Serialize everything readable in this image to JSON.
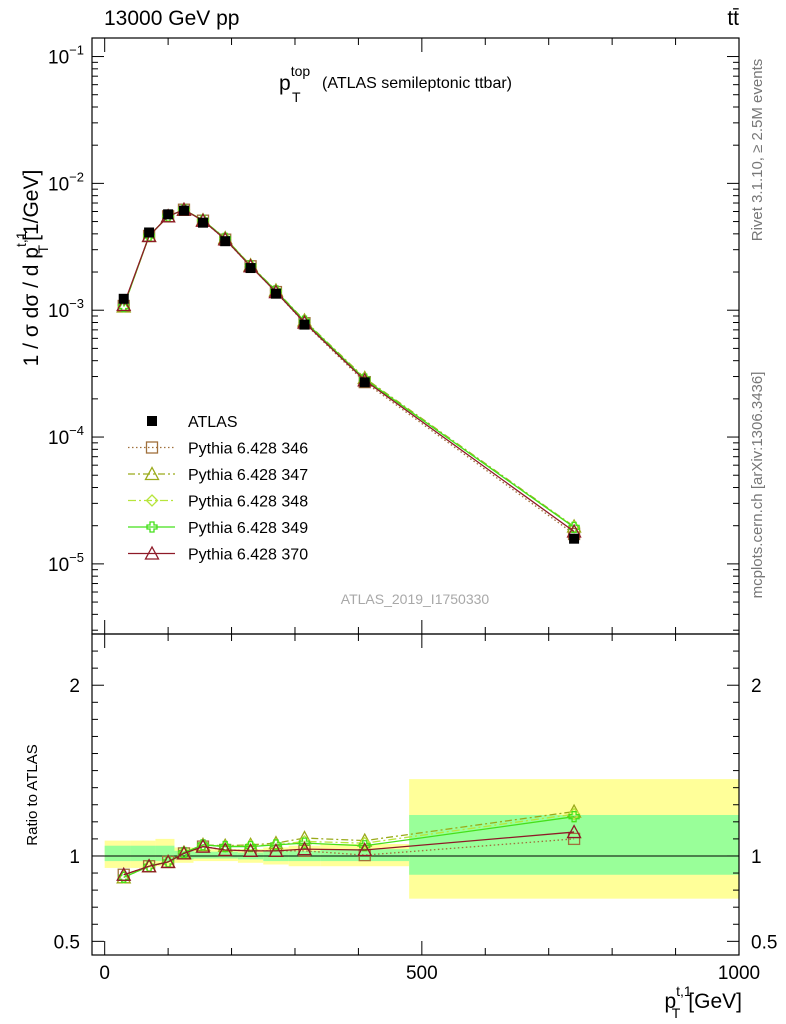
{
  "header": {
    "energy_label": "13000 GeV pp",
    "process_label": "tt̄"
  },
  "side_labels": {
    "rivet": "Rivet 3.1.10, ≥ 2.5M events",
    "mcplots": "mcplots.cern.ch [arXiv:1306.3436]"
  },
  "watermark": "ATLAS_2019_I1750330",
  "chart_data": [
    {
      "type": "line",
      "panel": "main",
      "title_main": "p",
      "title_sup": "top",
      "title_sub": "T",
      "title_rest": "(ATLAS semileptonic ttbar)",
      "ylabel": "1 / σ dσ / d p",
      "ylabel_sup": "t,1",
      "ylabel_sub": "T",
      "ylabel_unit": "[1/GeV]",
      "yscale": "log",
      "xlim": [
        -20,
        1000
      ],
      "ylim": [
        2.8e-06,
        0.14
      ],
      "ytick_labels": [
        {
          "value": 1e-05,
          "base": "10",
          "exp": "−5"
        },
        {
          "value": 0.0001,
          "base": "10",
          "exp": "−4"
        },
        {
          "value": 0.001,
          "base": "10",
          "exp": "−3"
        },
        {
          "value": 0.01,
          "base": "10",
          "exp": "−2"
        },
        {
          "value": 0.1,
          "base": "10",
          "exp": "−1"
        }
      ],
      "x": [
        30,
        70,
        100,
        125,
        155,
        190,
        230,
        270,
        315,
        410,
        740
      ],
      "data": {
        "name": "ATLAS",
        "values": [
          0.00123,
          0.0041,
          0.0057,
          0.0061,
          0.0049,
          0.0035,
          0.00215,
          0.00135,
          0.00077,
          0.00027,
          1.58e-05
        ]
      },
      "series": [
        {
          "name": "Pythia 6.428 346",
          "color": "#a0703c",
          "marker": "square",
          "dash": "1.5,2.5",
          "values": [
            0.00108,
            0.00385,
            0.0055,
            0.0062,
            0.00508,
            0.0036,
            0.00222,
            0.00139,
            0.00079,
            0.000271,
            1.72e-05
          ]
        },
        {
          "name": "Pythia 6.428 347",
          "color": "#9aaa1a",
          "marker": "triangle",
          "dash": "7,3,2,3",
          "values": [
            0.00107,
            0.00385,
            0.0055,
            0.0062,
            0.00512,
            0.0037,
            0.00226,
            0.00143,
            0.00083,
            0.000292,
            1.97e-05
          ]
        },
        {
          "name": "Pythia 6.428 348",
          "color": "#b7e53c",
          "marker": "diamond",
          "dash": "8,3,2,3",
          "values": [
            0.00107,
            0.00385,
            0.0055,
            0.0062,
            0.00512,
            0.00368,
            0.00225,
            0.00142,
            0.00082,
            0.000287,
            1.95e-05
          ]
        },
        {
          "name": "Pythia 6.428 349",
          "color": "#44e01a",
          "marker": "cross",
          "dash": "",
          "values": [
            0.00107,
            0.00385,
            0.0055,
            0.0062,
            0.00512,
            0.00368,
            0.00224,
            0.00142,
            0.00082,
            0.000286,
            1.94e-05
          ]
        },
        {
          "name": "Pythia 6.428 370",
          "color": "#8e1a28",
          "marker": "triangle",
          "dash": "",
          "values": [
            0.0011,
            0.00385,
            0.0055,
            0.0062,
            0.00508,
            0.00362,
            0.00222,
            0.00139,
            0.0008,
            0.00028,
            1.8e-05
          ]
        }
      ]
    },
    {
      "type": "line",
      "panel": "ratio",
      "ylabel": "Ratio to ATLAS",
      "xlabel": "p",
      "xlabel_sup": "t,1",
      "xlabel_sub": "T",
      "xlabel_unit": "[GeV]",
      "xlim": [
        -20,
        1000
      ],
      "ylim": [
        0.42,
        2.3
      ],
      "yticks_major": [
        0.5,
        1,
        2
      ],
      "ytick_labels": [
        "0.5",
        "1",
        "2"
      ],
      "xticks_major": [
        0,
        500,
        1000
      ],
      "xtick_labels": [
        "0",
        "500",
        "1000"
      ],
      "x": [
        30,
        70,
        100,
        125,
        155,
        190,
        230,
        270,
        315,
        410,
        740
      ],
      "bands": {
        "edges": [
          0,
          40,
          80,
          110,
          140,
          170,
          210,
          250,
          290,
          340,
          480,
          1000
        ],
        "stat_syst": [
          [
            0.93,
            1.09
          ],
          [
            0.93,
            1.09
          ],
          [
            0.94,
            1.1
          ],
          [
            0.96,
            1.05
          ],
          [
            0.97,
            1.04
          ],
          [
            0.97,
            1.04
          ],
          [
            0.96,
            1.04
          ],
          [
            0.95,
            1.05
          ],
          [
            0.94,
            1.06
          ],
          [
            0.94,
            1.07
          ],
          [
            0.75,
            1.45
          ]
        ],
        "stat": [
          [
            0.97,
            1.06
          ],
          [
            0.97,
            1.06
          ],
          [
            0.97,
            1.06
          ],
          [
            0.98,
            1.03
          ],
          [
            0.985,
            1.025
          ],
          [
            0.985,
            1.025
          ],
          [
            0.98,
            1.02
          ],
          [
            0.97,
            1.03
          ],
          [
            0.97,
            1.03
          ],
          [
            0.97,
            1.04
          ],
          [
            0.89,
            1.24
          ]
        ]
      },
      "series": [
        {
          "name": "Pythia 6.428 346",
          "values": [
            0.89,
            0.94,
            0.965,
            1.015,
            1.055,
            1.035,
            1.03,
            1.03,
            1.03,
            1.005,
            1.1
          ]
        },
        {
          "name": "Pythia 6.428 347",
          "values": [
            0.875,
            0.94,
            0.965,
            1.02,
            1.065,
            1.06,
            1.065,
            1.075,
            1.105,
            1.09,
            1.26
          ]
        },
        {
          "name": "Pythia 6.428 348",
          "values": [
            0.875,
            0.94,
            0.965,
            1.02,
            1.065,
            1.055,
            1.06,
            1.065,
            1.085,
            1.075,
            1.245
          ]
        },
        {
          "name": "Pythia 6.428 349",
          "values": [
            0.875,
            0.94,
            0.965,
            1.02,
            1.065,
            1.055,
            1.055,
            1.065,
            1.075,
            1.06,
            1.23
          ]
        },
        {
          "name": "Pythia 6.428 370",
          "values": [
            0.89,
            0.94,
            0.965,
            1.015,
            1.055,
            1.035,
            1.03,
            1.03,
            1.04,
            1.035,
            1.14
          ]
        }
      ]
    }
  ]
}
